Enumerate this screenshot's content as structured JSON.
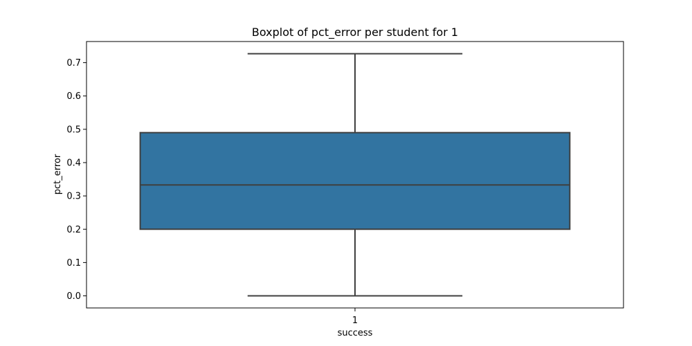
{
  "chart_data": {
    "type": "boxplot",
    "title": "Boxplot of pct_error per student for 1",
    "xlabel": "success",
    "ylabel": "pct_error",
    "categories": [
      "1"
    ],
    "boxes": [
      {
        "category": "1",
        "whisker_low": 0.0,
        "q1": 0.2,
        "median": 0.333,
        "q3": 0.49,
        "whisker_high": 0.727
      }
    ],
    "y_ticks": [
      "0.0",
      "0.1",
      "0.2",
      "0.3",
      "0.4",
      "0.5",
      "0.6",
      "0.7"
    ],
    "ylim": [
      -0.0363,
      0.7635
    ],
    "grid": false,
    "colors": {
      "box_fill": "#3274a1",
      "line": "#3f3f3f"
    }
  }
}
